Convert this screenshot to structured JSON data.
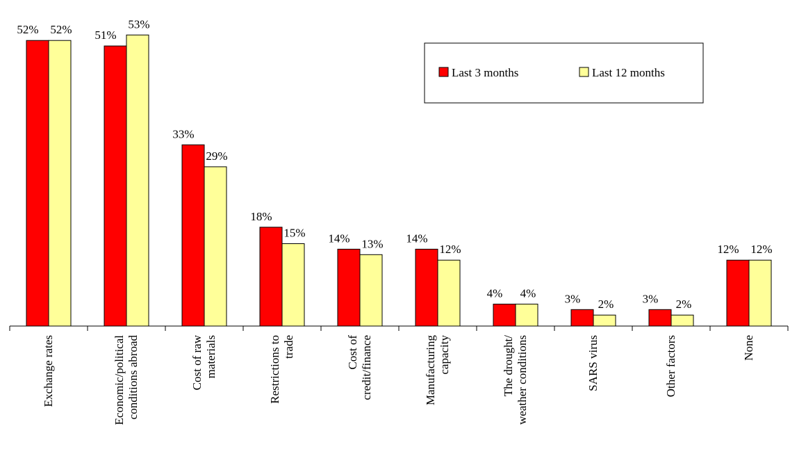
{
  "chart_data": {
    "type": "bar",
    "categories": [
      "Exchange rates",
      "Economic/political\nconditions abroad",
      "Cost of raw\nmaterials",
      "Restrictions to\ntrade",
      "Cost of\ncredit/finance",
      "Manufacturing\ncapacity",
      "The drought/\nweather conditions",
      "SARS virus",
      "Other factors",
      "None"
    ],
    "series": [
      {
        "name": "Last 3 months",
        "color": "#ff0000",
        "values": [
          52,
          51,
          33,
          18,
          14,
          14,
          4,
          3,
          3,
          12
        ],
        "value_labels": [
          "52%",
          "51%",
          "33%",
          "18%",
          "14%",
          "14%",
          "4%",
          "3%",
          "3%",
          "12%"
        ]
      },
      {
        "name": "Last 12 months",
        "color": "#ffff99",
        "values": [
          52,
          53,
          29,
          15,
          13,
          12,
          4,
          2,
          2,
          12
        ],
        "value_labels": [
          "52%",
          "53%",
          "29%",
          "15%",
          "13%",
          "12%",
          "4%",
          "2%",
          "2%",
          "12%"
        ]
      }
    ],
    "legend": "top-right"
  }
}
